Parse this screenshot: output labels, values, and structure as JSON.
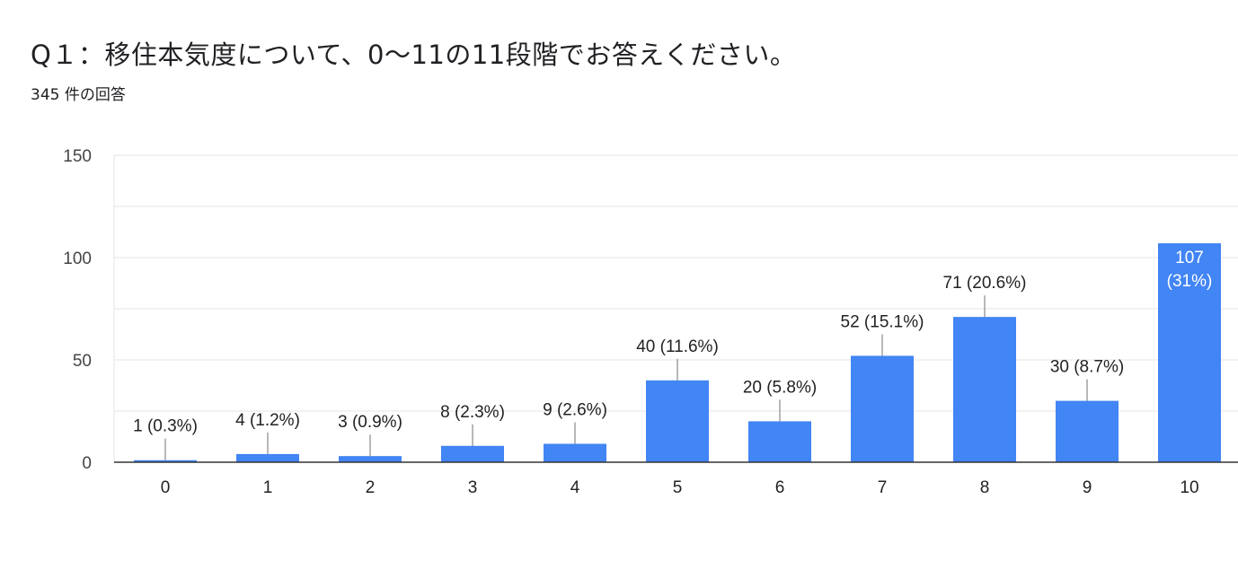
{
  "header": {
    "title": "Q１：移住本気度について、0〜11の11段階でお答えください。",
    "response_count": "345 件の回答"
  },
  "colors": {
    "bar": "#4285f4",
    "grid": "#e6e6e6",
    "axis": "#333333"
  },
  "chart_data": {
    "type": "bar",
    "categories": [
      "0",
      "1",
      "2",
      "3",
      "4",
      "5",
      "6",
      "7",
      "8",
      "9",
      "10"
    ],
    "values": [
      1,
      4,
      3,
      8,
      9,
      40,
      20,
      52,
      71,
      30,
      107
    ],
    "data_labels": [
      "1 (0.3%)",
      "4 (1.2%)",
      "3 (0.9%)",
      "8 (2.3%)",
      "9 (2.6%)",
      "40 (11.6%)",
      "20 (5.8%)",
      "52 (15.1%)",
      "71 (20.6%)",
      "30 (8.7%)",
      "107 (31%)"
    ],
    "yticks": [
      0,
      50,
      100,
      150
    ],
    "ylim": [
      0,
      150
    ],
    "grid": true,
    "title": "Q１：移住本気度について、0〜11の11段階でお答えください。",
    "xlabel": "",
    "ylabel": ""
  }
}
